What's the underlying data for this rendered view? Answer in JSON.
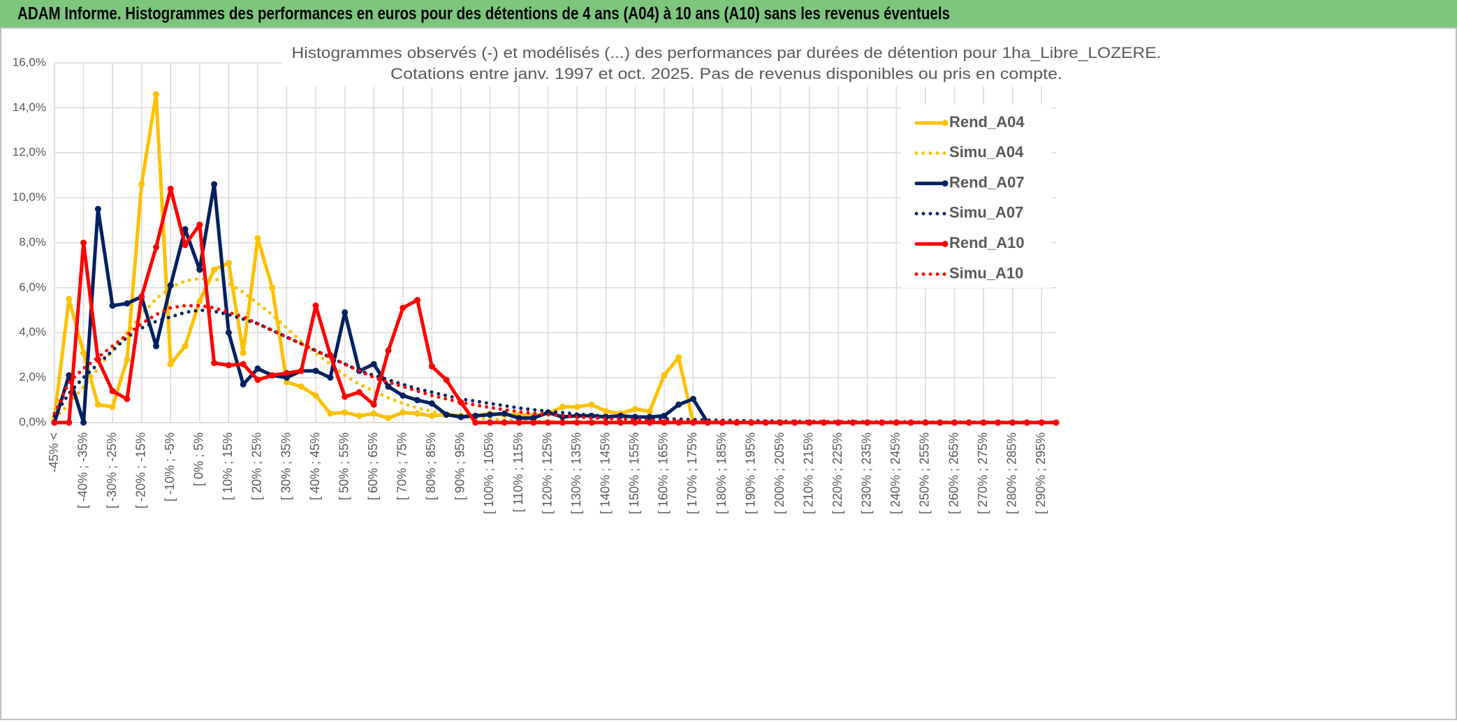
{
  "header": {
    "title": "ADAM Informe. Histogrammes des performances en euros pour des détentions de 4 ans (A04) à 10 ans (A10) sans les revenus éventuels"
  },
  "chart_data": {
    "type": "line",
    "title": "Histogrammes observés (-) et modélisés (...) des performances par durées de détention pour 1ha_Libre_LOZERE.",
    "subtitle": "Cotations entre janv. 1997 et oct. 2025. Pas de revenus disponibles ou pris en compte.",
    "categories": [
      "-45% <",
      null,
      "[ -40% ; -35%",
      null,
      "[ -30% ; -25%",
      null,
      "[ -20% ; -15%",
      null,
      "[ -10% ; -5%",
      null,
      "[ 0% ; 5%",
      null,
      "[ 10% ; 15%",
      null,
      "[ 20% ; 25%",
      null,
      "[ 30% ; 35%",
      null,
      "[ 40% ; 45%",
      null,
      "[ 50% ; 55%",
      null,
      "[ 60% ; 65%",
      null,
      "[ 70% ; 75%",
      null,
      "[ 80% ; 85%",
      null,
      "[ 90% ; 95%",
      null,
      "[ 100% ; 105%",
      null,
      "[ 110% ; 115%",
      null,
      "[ 120% ; 125%",
      null,
      "[ 130% ; 135%",
      null,
      "[ 140% ; 145%",
      null,
      "[ 150% ; 155%",
      null,
      "[ 160% ; 165%",
      null,
      "[ 170% ; 175%",
      null,
      "[ 180% ; 185%",
      null,
      "[ 190% ; 195%",
      null,
      "[ 200% ; 205%",
      null,
      "[ 210% ; 215%",
      null,
      "[ 220% ; 225%",
      null,
      "[ 230% ; 235%",
      null,
      "[ 240% ; 245%",
      null,
      "[ 250% ; 255%",
      null,
      "[ 260% ; 265%",
      null,
      "[ 270% ; 275%",
      null,
      "[ 280% ; 285%",
      null,
      "[ 290% ; 295%",
      null
    ],
    "series": [
      {
        "name": "Rend_A04",
        "color": "#ffc000",
        "style": "solid",
        "values": [
          0.2,
          5.5,
          3.1,
          0.8,
          0.7,
          2.8,
          10.6,
          14.6,
          2.6,
          3.4,
          5.4,
          6.8,
          7.1,
          3.1,
          8.2,
          6.0,
          1.8,
          1.6,
          1.2,
          0.4,
          0.45,
          0.3,
          0.4,
          0.2,
          0.45,
          0.4,
          0.3,
          0.35,
          0.3,
          0.3,
          0.4,
          0.35,
          0.35,
          0.3,
          0.4,
          0.7,
          0.7,
          0.8,
          0.5,
          0.4,
          0.6,
          0.5,
          2.1,
          2.9,
          0,
          0,
          0,
          0,
          0,
          0,
          0,
          0,
          0,
          0,
          0,
          0,
          0,
          0,
          0,
          0,
          0,
          0,
          0,
          0,
          0,
          0,
          0,
          0,
          0,
          0
        ]
      },
      {
        "name": "Simu_A04",
        "color": "#ffc000",
        "style": "dotted",
        "values": [
          0.2,
          0.8,
          1.6,
          2.4,
          3.2,
          4.0,
          4.8,
          5.5,
          6.0,
          6.3,
          6.4,
          6.4,
          6.2,
          5.8,
          5.3,
          4.8,
          4.2,
          3.6,
          3.1,
          2.6,
          2.1,
          1.7,
          1.4,
          1.1,
          0.85,
          0.65,
          0.5,
          0.4,
          0.3,
          0.22,
          0.16,
          0.12,
          0.09,
          0.07,
          0.05,
          0.04,
          0.03,
          0.03,
          0.02,
          0.02,
          0.01,
          0,
          0,
          0,
          0,
          0,
          0,
          0,
          0,
          0,
          0,
          0,
          0,
          0,
          0,
          0,
          0,
          0,
          0,
          0,
          0,
          0,
          0,
          0,
          0,
          0,
          0,
          0,
          0,
          0
        ]
      },
      {
        "name": "Rend_A07",
        "color": "#002060",
        "style": "solid",
        "values": [
          0,
          2.1,
          0,
          9.5,
          5.2,
          5.3,
          5.6,
          3.4,
          6.1,
          8.6,
          6.8,
          10.6,
          4.0,
          1.7,
          2.4,
          2.1,
          2.0,
          2.3,
          2.3,
          2.0,
          4.9,
          2.3,
          2.6,
          1.6,
          1.2,
          1.0,
          0.85,
          0.35,
          0.25,
          0.3,
          0.35,
          0.4,
          0.2,
          0.2,
          0.45,
          0.25,
          0.3,
          0.3,
          0.25,
          0.3,
          0.25,
          0.25,
          0.3,
          0.8,
          1.05,
          0,
          0,
          0,
          0,
          0,
          0,
          0,
          0,
          0,
          0,
          0,
          0,
          0,
          0,
          0,
          0,
          0,
          0,
          0,
          0,
          0,
          0,
          0,
          0,
          0
        ]
      },
      {
        "name": "Simu_A07",
        "color": "#002060",
        "style": "dotted",
        "values": [
          0.3,
          1.3,
          2.0,
          2.6,
          3.2,
          3.8,
          4.2,
          4.5,
          4.7,
          4.9,
          5.0,
          4.95,
          4.8,
          4.6,
          4.4,
          4.1,
          3.8,
          3.5,
          3.2,
          2.9,
          2.6,
          2.3,
          2.1,
          1.9,
          1.7,
          1.5,
          1.35,
          1.2,
          1.05,
          0.95,
          0.85,
          0.75,
          0.65,
          0.57,
          0.5,
          0.44,
          0.38,
          0.33,
          0.29,
          0.25,
          0.22,
          0.19,
          0.17,
          0.15,
          0.13,
          0.11,
          0.1,
          0.09,
          0.08,
          0.07,
          0.06,
          0.05,
          0.05,
          0.04,
          0.04,
          0.04,
          0.03,
          0.03,
          0.03,
          0.03,
          0.02,
          0.02,
          0.02,
          0.02,
          0.02,
          0.01,
          0.01,
          0.01,
          0.01,
          0.01
        ]
      },
      {
        "name": "Rend_A10",
        "color": "#ff0000",
        "style": "solid",
        "values": [
          0,
          0,
          8.0,
          2.8,
          1.4,
          1.05,
          5.6,
          7.8,
          10.4,
          7.9,
          8.8,
          2.65,
          2.55,
          2.6,
          1.9,
          2.1,
          2.2,
          2.3,
          5.2,
          3.0,
          1.15,
          1.35,
          0.8,
          3.2,
          5.1,
          5.45,
          2.5,
          1.9,
          0.9,
          0,
          0,
          0,
          0,
          0,
          0,
          0,
          0,
          0,
          0,
          0,
          0,
          0,
          0,
          0,
          0,
          0,
          0,
          0,
          0,
          0,
          0,
          0,
          0,
          0,
          0,
          0,
          0,
          0,
          0,
          0,
          0,
          0,
          0,
          0,
          0,
          0,
          0,
          0,
          0,
          0
        ]
      },
      {
        "name": "Simu_A10",
        "color": "#ff0000",
        "style": "dotted",
        "values": [
          0.4,
          1.8,
          2.4,
          2.9,
          3.4,
          3.9,
          4.4,
          4.8,
          5.1,
          5.2,
          5.2,
          5.1,
          4.9,
          4.7,
          4.4,
          4.1,
          3.8,
          3.5,
          3.2,
          2.9,
          2.6,
          2.3,
          2.0,
          1.8,
          1.6,
          1.4,
          1.2,
          1.05,
          0.9,
          0.78,
          0.67,
          0.57,
          0.48,
          0.41,
          0.35,
          0.3,
          0.25,
          0.21,
          0.18,
          0.15,
          0.13,
          0.11,
          0.09,
          0.08,
          0.07,
          0.06,
          0.05,
          0.04,
          0.04,
          0.04,
          0.03,
          0.03,
          0.03,
          0.03,
          0.03,
          0.02,
          0.02,
          0.02,
          0.02,
          0.02,
          0.02,
          0.02,
          0.01,
          0.01,
          0.01,
          0.01,
          0.01,
          0.01,
          0.01,
          0.01
        ]
      }
    ],
    "ylim": [
      0,
      16
    ],
    "yticks": [
      {
        "value": 0,
        "label": "0,0%"
      },
      {
        "value": 2,
        "label": "2,0%"
      },
      {
        "value": 4,
        "label": "4,0%"
      },
      {
        "value": 6,
        "label": "6,0%"
      },
      {
        "value": 8,
        "label": "8,0%"
      },
      {
        "value": 10,
        "label": "10,0%"
      },
      {
        "value": 12,
        "label": "12,0%"
      },
      {
        "value": 14,
        "label": "14,0%"
      },
      {
        "value": 16,
        "label": "16,0%"
      }
    ],
    "grid": true,
    "legend": "right"
  }
}
